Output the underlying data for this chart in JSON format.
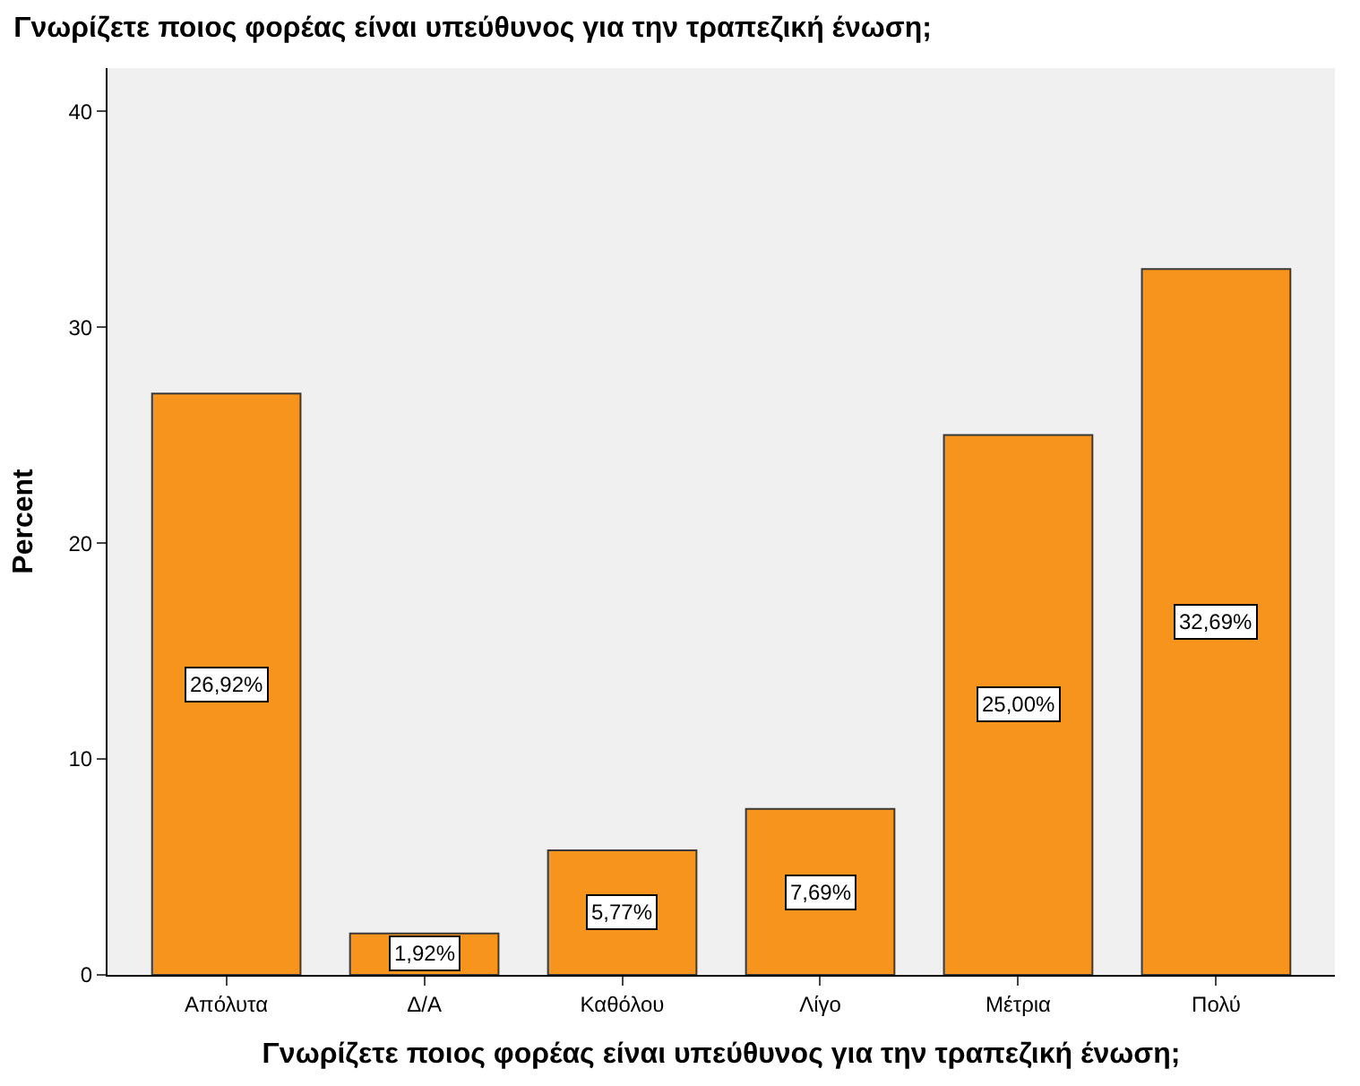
{
  "chart_data": {
    "type": "bar",
    "title": "Γνωρίζετε ποιος φορέας είναι υπεύθυνος για την τραπεζική ένωση;",
    "xlabel": "Γνωρίζετε ποιος φορέας είναι υπεύθυνος για την τραπεζική ένωση;",
    "ylabel": "Percent",
    "categories": [
      "Απόλυτα",
      "Δ/Α",
      "Καθόλου",
      "Λίγο",
      "Μέτρια",
      "Πολύ"
    ],
    "values": [
      26.92,
      1.92,
      5.77,
      7.69,
      25.0,
      32.69
    ],
    "value_labels": [
      "26,92%",
      "1,92%",
      "5,77%",
      "7,69%",
      "25,00%",
      "32,69%"
    ],
    "color": "#f7941d",
    "ylim": [
      0,
      42
    ],
    "yticks": [
      0,
      10,
      20,
      30,
      40
    ],
    "grid": false,
    "legend": false
  }
}
